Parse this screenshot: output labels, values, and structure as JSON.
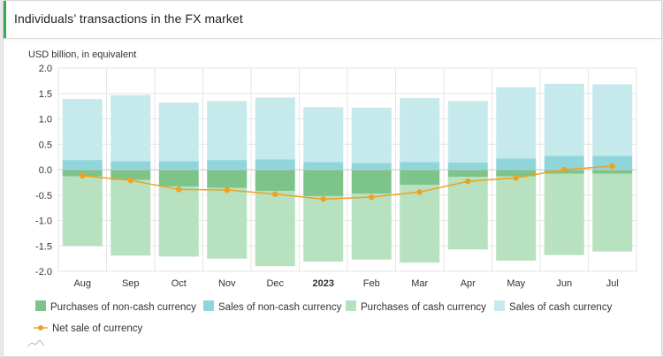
{
  "header": {
    "title": "Individuals’ transactions in the FX market"
  },
  "colors": {
    "accent": "#3aa757",
    "purchases_non_cash": "#7cc48a",
    "sales_non_cash": "#8fd6dc",
    "purchases_cash": "#b7e1bf",
    "sales_cash": "#c6e9ec",
    "net": "#f0a11f"
  },
  "chart_data": {
    "type": "bar",
    "ylabel": "USD billion, in equivalent",
    "ylim": [
      -2.0,
      2.0
    ],
    "yticks": [
      "2.0",
      "1.5",
      "1.0",
      "0.5",
      "0.0",
      "-0.5",
      "-1.0",
      "-1.5",
      "-2.0"
    ],
    "grid": true,
    "legend_position": "bottom",
    "categories": [
      "Aug",
      "Sep",
      "Oct",
      "Nov",
      "Dec",
      "2023",
      "Feb",
      "Mar",
      "Apr",
      "May",
      "Jun",
      "Jul"
    ],
    "bold_categories": [
      "2023"
    ],
    "stacked": true,
    "series": [
      {
        "name": "Purchases of non-cash currency",
        "kind": "bar",
        "color": "#7cc48a",
        "values": [
          -0.13,
          -0.2,
          -0.33,
          -0.36,
          -0.42,
          -0.52,
          -0.47,
          -0.3,
          -0.14,
          -0.13,
          -0.08,
          -0.08
        ]
      },
      {
        "name": "Sales of non-cash currency",
        "kind": "bar",
        "color": "#8fd6dc",
        "values": [
          0.19,
          0.17,
          0.17,
          0.19,
          0.2,
          0.15,
          0.13,
          0.15,
          0.14,
          0.22,
          0.27,
          0.27
        ]
      },
      {
        "name": "Purchases of cash currency",
        "kind": "bar",
        "color": "#b7e1bf",
        "values": [
          -1.37,
          -1.49,
          -1.38,
          -1.39,
          -1.48,
          -1.29,
          -1.3,
          -1.53,
          -1.43,
          -1.66,
          -1.6,
          -1.53
        ]
      },
      {
        "name": "Sales of cash currency",
        "kind": "bar",
        "color": "#c6e9ec",
        "values": [
          1.2,
          1.3,
          1.15,
          1.16,
          1.22,
          1.08,
          1.09,
          1.26,
          1.21,
          1.4,
          1.42,
          1.41
        ]
      },
      {
        "name": "Net sale of currency",
        "kind": "line",
        "color": "#f0a11f",
        "values": [
          -0.12,
          -0.21,
          -0.39,
          -0.4,
          -0.48,
          -0.58,
          -0.54,
          -0.44,
          -0.23,
          -0.16,
          0.0,
          0.07
        ]
      }
    ]
  }
}
